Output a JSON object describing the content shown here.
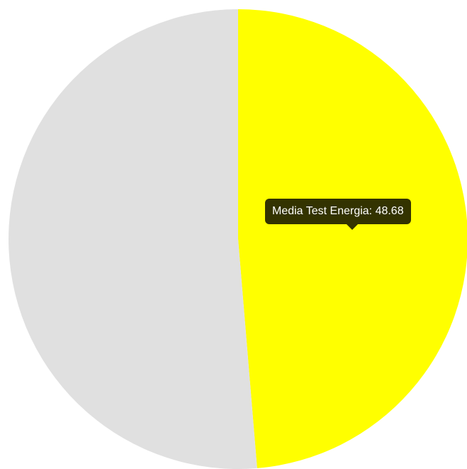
{
  "chart_data": {
    "type": "pie",
    "slices": [
      {
        "label": "Media Test Energia",
        "value": 48.68,
        "color": "#ffff00"
      },
      {
        "label": "",
        "value": 51.32,
        "color": "#e0e0e0"
      }
    ],
    "start_angle_deg": -90,
    "legend": "none",
    "tooltip": {
      "label": "Media Test Energia",
      "value": "48.68"
    }
  }
}
